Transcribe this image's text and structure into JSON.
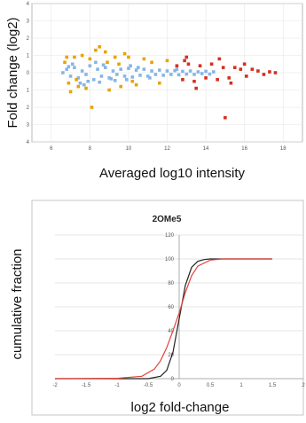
{
  "chart_data": [
    {
      "type": "scatter",
      "title": "",
      "xlabel": "Averaged log10 intensity",
      "ylabel": "Fold change (log2)",
      "xlim": [
        5,
        19
      ],
      "ylim": [
        -4,
        4
      ],
      "x_ticks": [
        "6",
        "8",
        "10",
        "12",
        "14",
        "16",
        "18"
      ],
      "y_ticks": [
        "4",
        "3",
        "2",
        "1",
        "0",
        "1",
        "2",
        "3",
        "4"
      ],
      "grid": true,
      "series": [
        {
          "color": "#86b6e6",
          "points": [
            [
              6.6,
              0.0
            ],
            [
              6.8,
              0.2
            ],
            [
              7.0,
              -0.2
            ],
            [
              7.2,
              0.3
            ],
            [
              7.4,
              -0.3
            ],
            [
              7.6,
              0.1
            ],
            [
              7.8,
              -0.1
            ],
            [
              8.0,
              0.4
            ],
            [
              8.2,
              -0.4
            ],
            [
              8.4,
              0.2
            ],
            [
              8.6,
              -0.2
            ],
            [
              8.8,
              0.3
            ],
            [
              9.0,
              -0.3
            ],
            [
              9.2,
              0.1
            ],
            [
              9.4,
              -0.1
            ],
            [
              9.6,
              0.2
            ],
            [
              9.8,
              -0.2
            ],
            [
              10.0,
              0.25
            ],
            [
              10.2,
              -0.25
            ],
            [
              10.4,
              0.15
            ],
            [
              10.6,
              -0.15
            ],
            [
              10.8,
              0.2
            ],
            [
              11.0,
              -0.2
            ],
            [
              11.2,
              0.1
            ],
            [
              11.4,
              -0.1
            ],
            [
              11.6,
              0.15
            ],
            [
              11.8,
              -0.15
            ],
            [
              12.0,
              0.1
            ],
            [
              12.2,
              -0.1
            ],
            [
              12.4,
              0.12
            ],
            [
              12.6,
              -0.12
            ],
            [
              12.8,
              0.08
            ],
            [
              13.0,
              -0.08
            ],
            [
              13.2,
              0.1
            ],
            [
              13.4,
              -0.1
            ],
            [
              13.6,
              0.05
            ],
            [
              13.8,
              -0.05
            ],
            [
              14.0,
              0.08
            ],
            [
              14.2,
              -0.08
            ],
            [
              14.4,
              0.05
            ],
            [
              7.1,
              0.5
            ],
            [
              7.9,
              -0.5
            ],
            [
              8.7,
              0.45
            ],
            [
              9.3,
              -0.45
            ],
            [
              10.1,
              0.4
            ],
            [
              7.5,
              -0.6
            ],
            [
              8.3,
              0.6
            ],
            [
              9.1,
              -0.35
            ],
            [
              6.9,
              0.35
            ],
            [
              9.9,
              -0.4
            ],
            [
              7.7,
              -0.7
            ],
            [
              8.5,
              -0.55
            ],
            [
              10.5,
              0.3
            ],
            [
              11.1,
              -0.3
            ],
            [
              12.5,
              0.2
            ]
          ]
        },
        {
          "color": "#e8a300",
          "points": [
            [
              6.7,
              0.6
            ],
            [
              6.9,
              -0.6
            ],
            [
              7.2,
              0.9
            ],
            [
              7.4,
              -0.8
            ],
            [
              7.6,
              1.0
            ],
            [
              7.8,
              -0.9
            ],
            [
              8.0,
              0.8
            ],
            [
              8.3,
              1.3
            ],
            [
              8.5,
              1.5
            ],
            [
              8.8,
              1.2
            ],
            [
              9.0,
              -1.0
            ],
            [
              9.3,
              0.9
            ],
            [
              9.6,
              -0.8
            ],
            [
              10.0,
              0.9
            ],
            [
              10.4,
              -0.7
            ],
            [
              10.8,
              0.8
            ],
            [
              11.2,
              0.6
            ],
            [
              11.6,
              -0.6
            ],
            [
              12.0,
              0.7
            ],
            [
              8.1,
              -2.0
            ],
            [
              7.0,
              -1.1
            ],
            [
              8.9,
              0.6
            ],
            [
              9.5,
              0.5
            ],
            [
              10.2,
              -0.5
            ],
            [
              6.8,
              0.9
            ],
            [
              7.3,
              -0.4
            ],
            [
              9.8,
              1.1
            ]
          ]
        },
        {
          "color": "#d43020",
          "points": [
            [
              12.5,
              0.4
            ],
            [
              12.8,
              -0.4
            ],
            [
              13.1,
              0.5
            ],
            [
              13.4,
              -0.5
            ],
            [
              13.7,
              0.4
            ],
            [
              14.0,
              -0.3
            ],
            [
              14.3,
              0.5
            ],
            [
              14.6,
              -0.4
            ],
            [
              14.9,
              0.3
            ],
            [
              15.2,
              -0.3
            ],
            [
              15.5,
              0.3
            ],
            [
              15.8,
              0.2
            ],
            [
              16.1,
              -0.2
            ],
            [
              16.4,
              0.2
            ],
            [
              16.7,
              0.1
            ],
            [
              17.0,
              -0.1
            ],
            [
              17.3,
              0.05
            ],
            [
              17.6,
              0.0
            ],
            [
              13.0,
              0.9
            ],
            [
              14.7,
              0.8
            ],
            [
              15.0,
              -2.6
            ],
            [
              13.5,
              -0.9
            ],
            [
              16.0,
              0.5
            ],
            [
              15.3,
              -0.6
            ],
            [
              12.9,
              0.7
            ]
          ]
        }
      ]
    },
    {
      "type": "line",
      "title": "2OMe5",
      "xlabel": "log2 fold-change",
      "ylabel": "cumulative fraction",
      "xlim": [
        -2,
        2
      ],
      "ylim": [
        0,
        120
      ],
      "x_ticks": [
        "-2",
        "-1.5",
        "-1",
        "-0.5",
        "0",
        "0.5",
        "1",
        "1.5",
        "2"
      ],
      "y_ticks": [
        "120",
        "100",
        "80",
        "60",
        "40",
        "20",
        "0"
      ],
      "grid": true,
      "series": [
        {
          "color": "#222222",
          "x": [
            -2.0,
            -1.0,
            -0.5,
            -0.3,
            -0.2,
            -0.1,
            0.0,
            0.1,
            0.2,
            0.3,
            0.4,
            0.5,
            1.5
          ],
          "y": [
            0,
            0,
            0,
            2,
            7,
            22,
            50,
            78,
            93,
            98,
            99.5,
            100,
            100
          ]
        },
        {
          "color": "#e0443a",
          "x": [
            -2.0,
            -1.0,
            -0.6,
            -0.4,
            -0.3,
            -0.2,
            -0.1,
            0.0,
            0.1,
            0.2,
            0.3,
            0.5,
            0.7,
            1.5
          ],
          "y": [
            0,
            0.3,
            2,
            8,
            15,
            26,
            40,
            55,
            72,
            86,
            94,
            99,
            100,
            100
          ]
        }
      ]
    }
  ]
}
